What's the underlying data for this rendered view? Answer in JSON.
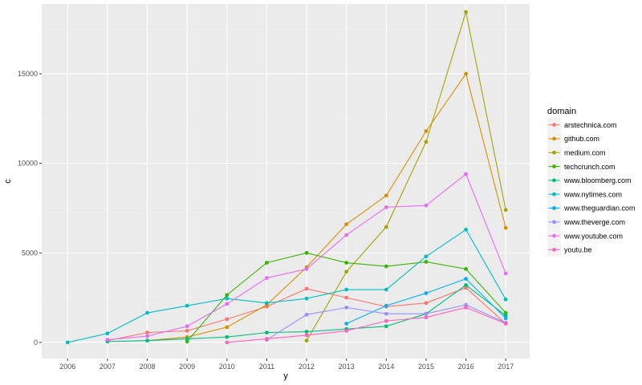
{
  "chart_data": {
    "type": "line",
    "xlabel": "y",
    "ylabel": "c",
    "xlim": [
      2005.35,
      2017.6
    ],
    "ylim": [
      -900,
      18900
    ],
    "x_ticks": [
      2006,
      2007,
      2008,
      2009,
      2010,
      2011,
      2012,
      2013,
      2014,
      2015,
      2016,
      2017
    ],
    "y_ticks": [
      0,
      5000,
      10000,
      15000
    ],
    "grid": true,
    "legend": {
      "title": "domain",
      "placement": "right"
    },
    "series": [
      {
        "name": "arstechnica.com",
        "color": "#F8766D",
        "points": [
          [
            2007,
            100
          ],
          [
            2008,
            550
          ],
          [
            2009,
            650
          ],
          [
            2010,
            1300
          ],
          [
            2011,
            2000
          ],
          [
            2012,
            3000
          ],
          [
            2013,
            2500
          ],
          [
            2014,
            2000
          ],
          [
            2015,
            2200
          ],
          [
            2016,
            3050
          ],
          [
            2017,
            1050
          ]
        ]
      },
      {
        "name": "github.com",
        "color": "#D89000",
        "points": [
          [
            2008,
            100
          ],
          [
            2009,
            300
          ],
          [
            2010,
            850
          ],
          [
            2011,
            2100
          ],
          [
            2012,
            4200
          ],
          [
            2013,
            6600
          ],
          [
            2014,
            8200
          ],
          [
            2015,
            11800
          ],
          [
            2016,
            15000
          ],
          [
            2017,
            6400
          ]
        ]
      },
      {
        "name": "medium.com",
        "color": "#A3A500",
        "points": [
          [
            2012,
            100
          ],
          [
            2013,
            3950
          ],
          [
            2014,
            6450
          ],
          [
            2015,
            11200
          ],
          [
            2016,
            18450
          ],
          [
            2017,
            7400
          ]
        ]
      },
      {
        "name": "techcrunch.com",
        "color": "#39B600",
        "points": [
          [
            2009,
            50
          ],
          [
            2010,
            2650
          ],
          [
            2011,
            4450
          ],
          [
            2012,
            5000
          ],
          [
            2013,
            4450
          ],
          [
            2014,
            4250
          ],
          [
            2015,
            4500
          ],
          [
            2016,
            4100
          ],
          [
            2017,
            1650
          ]
        ]
      },
      {
        "name": "www.bloomberg.com",
        "color": "#00BF7D",
        "points": [
          [
            2007,
            50
          ],
          [
            2008,
            100
          ],
          [
            2009,
            200
          ],
          [
            2010,
            300
          ],
          [
            2011,
            550
          ],
          [
            2012,
            600
          ],
          [
            2013,
            750
          ],
          [
            2014,
            900
          ],
          [
            2015,
            1600
          ],
          [
            2016,
            3200
          ],
          [
            2017,
            1500
          ]
        ]
      },
      {
        "name": "www.nytimes.com",
        "color": "#00BFC4",
        "points": [
          [
            2006,
            0
          ],
          [
            2007,
            500
          ],
          [
            2008,
            1650
          ],
          [
            2009,
            2050
          ],
          [
            2010,
            2450
          ],
          [
            2011,
            2200
          ],
          [
            2012,
            2450
          ],
          [
            2013,
            2950
          ],
          [
            2014,
            2950
          ],
          [
            2015,
            4800
          ],
          [
            2016,
            6300
          ],
          [
            2017,
            2400
          ]
        ]
      },
      {
        "name": "www.theguardian.com",
        "color": "#00B0F6",
        "points": [
          [
            2013,
            1050
          ],
          [
            2014,
            2050
          ],
          [
            2015,
            2750
          ],
          [
            2016,
            3550
          ],
          [
            2017,
            1350
          ]
        ]
      },
      {
        "name": "www.theverge.com",
        "color": "#9590FF",
        "points": [
          [
            2011,
            150
          ],
          [
            2012,
            1550
          ],
          [
            2013,
            1950
          ],
          [
            2014,
            1600
          ],
          [
            2015,
            1600
          ],
          [
            2016,
            2100
          ],
          [
            2017,
            1100
          ]
        ]
      },
      {
        "name": "www.youtube.com",
        "color": "#E76BF3",
        "points": [
          [
            2007,
            150
          ],
          [
            2008,
            350
          ],
          [
            2009,
            900
          ],
          [
            2010,
            2150
          ],
          [
            2011,
            3600
          ],
          [
            2012,
            4100
          ],
          [
            2013,
            6000
          ],
          [
            2014,
            7550
          ],
          [
            2015,
            7650
          ],
          [
            2016,
            9400
          ],
          [
            2017,
            3850
          ]
        ]
      },
      {
        "name": "youtu.be",
        "color": "#FF62BC",
        "points": [
          [
            2010,
            0
          ],
          [
            2011,
            200
          ],
          [
            2012,
            400
          ],
          [
            2013,
            650
          ],
          [
            2014,
            1200
          ],
          [
            2015,
            1400
          ],
          [
            2016,
            1950
          ],
          [
            2017,
            1050
          ]
        ]
      }
    ]
  }
}
